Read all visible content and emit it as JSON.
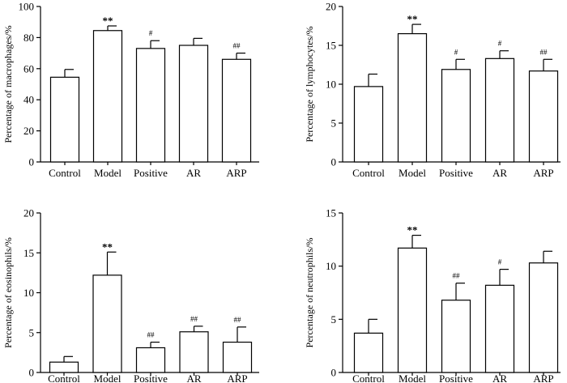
{
  "chart_data": [
    {
      "type": "bar",
      "ylabel": "Percentage of macrophages/%",
      "ylim": [
        0,
        100
      ],
      "yticks": [
        0,
        20,
        40,
        60,
        80,
        100
      ],
      "categories": [
        "Control",
        "Model",
        "Positive",
        "AR",
        "ARP"
      ],
      "values": [
        54.5,
        84.5,
        73,
        75,
        66
      ],
      "errors": [
        5,
        3,
        5,
        4.5,
        4
      ],
      "annotations": [
        "",
        "**",
        "#",
        "",
        "##"
      ]
    },
    {
      "type": "bar",
      "ylabel": "Percentage of lymphocytes/%",
      "ylim": [
        0,
        20
      ],
      "yticks": [
        0,
        5,
        10,
        15,
        20
      ],
      "categories": [
        "Control",
        "Model",
        "Positive",
        "AR",
        "ARP"
      ],
      "values": [
        9.7,
        16.5,
        11.9,
        13.3,
        11.7
      ],
      "errors": [
        1.6,
        1.2,
        1.3,
        1.0,
        1.5
      ],
      "annotations": [
        "",
        "**",
        "#",
        "#",
        "##"
      ]
    },
    {
      "type": "bar",
      "ylabel": "Percentage of eosinophils/%",
      "ylim": [
        0,
        20
      ],
      "yticks": [
        0,
        5,
        10,
        15,
        20
      ],
      "categories": [
        "Control",
        "Model",
        "Positive",
        "AR",
        "ARP"
      ],
      "values": [
        1.3,
        12.2,
        3.1,
        5.1,
        3.8
      ],
      "errors": [
        0.7,
        2.9,
        0.7,
        0.7,
        1.9
      ],
      "annotations": [
        "",
        "**",
        "##",
        "##",
        "##"
      ]
    },
    {
      "type": "bar",
      "ylabel": "Percentage of neutrophils/%",
      "ylim": [
        0,
        15
      ],
      "yticks": [
        0,
        5,
        10,
        15
      ],
      "categories": [
        "Control",
        "Model",
        "Positive",
        "AR",
        "ARP"
      ],
      "values": [
        3.7,
        11.7,
        6.8,
        8.2,
        10.3
      ],
      "errors": [
        1.3,
        1.2,
        1.6,
        1.5,
        1.1
      ],
      "annotations": [
        "",
        "**",
        "##",
        "#",
        ""
      ]
    }
  ]
}
